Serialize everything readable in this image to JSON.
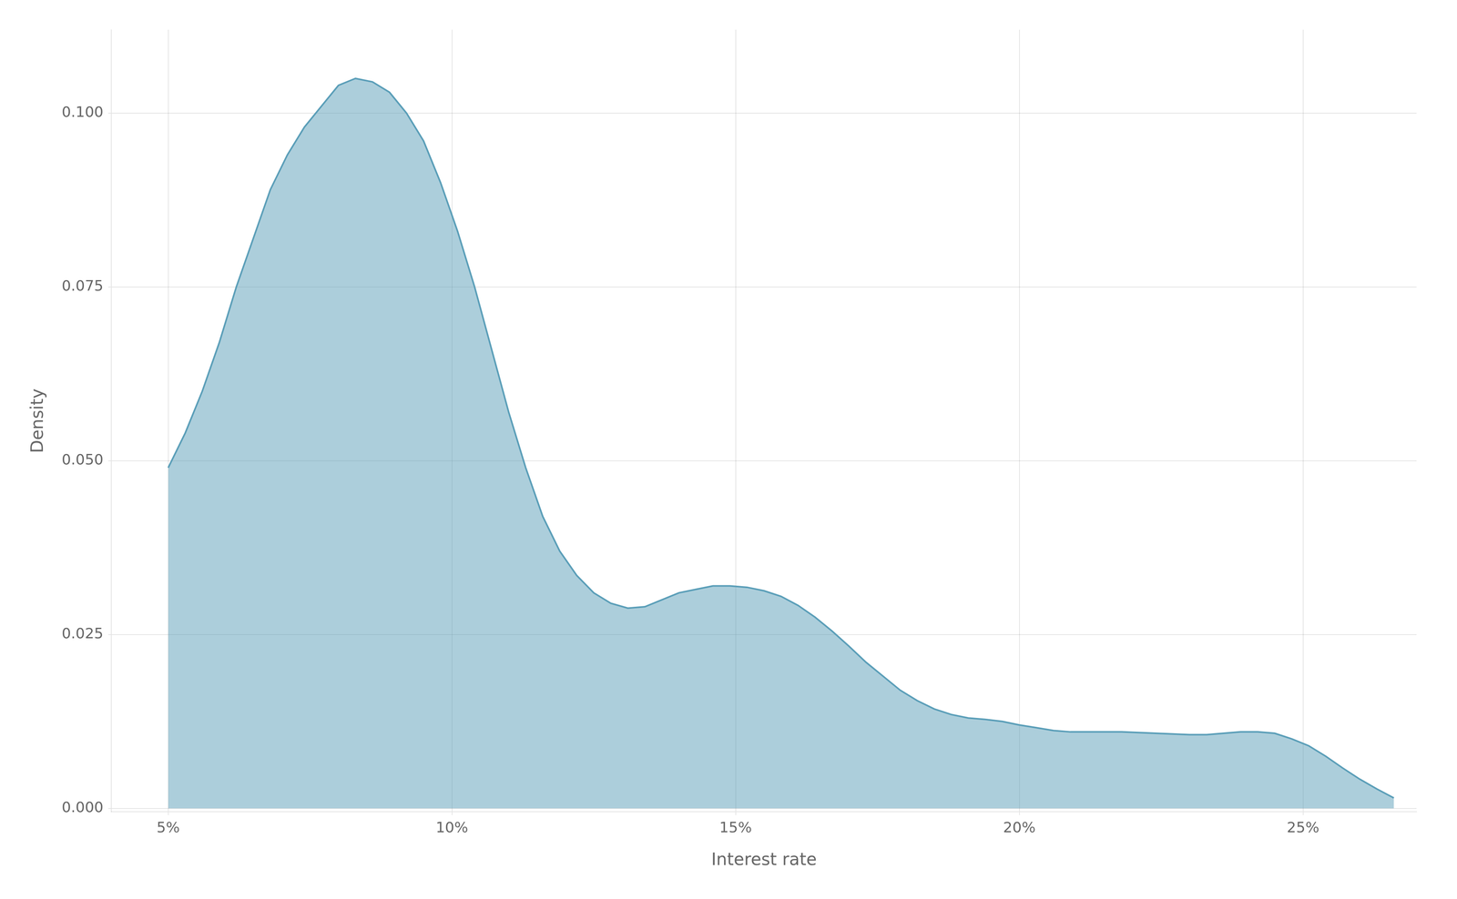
{
  "chart_data": {
    "type": "area",
    "xlabel": "Interest rate",
    "ylabel": "Density",
    "color": "#5a9eb8",
    "grid": true,
    "xlim": [
      0.04,
      0.27
    ],
    "ylim": [
      -0.0005,
      0.112
    ],
    "xticks": [
      {
        "value": 0.05,
        "label": "5%"
      },
      {
        "value": 0.1,
        "label": "10%"
      },
      {
        "value": 0.15,
        "label": "15%"
      },
      {
        "value": 0.2,
        "label": "20%"
      },
      {
        "value": 0.25,
        "label": "25%"
      }
    ],
    "yticks": [
      {
        "value": 0.0,
        "label": "0.000"
      },
      0.025,
      {
        "value": 0.05,
        "label": "0.050"
      },
      0.075,
      {
        "value": 0.1,
        "label": "0.100"
      }
    ],
    "x": [
      0.05,
      0.053,
      0.056,
      0.059,
      0.062,
      0.065,
      0.068,
      0.071,
      0.074,
      0.077,
      0.08,
      0.083,
      0.086,
      0.089,
      0.092,
      0.095,
      0.098,
      0.101,
      0.104,
      0.107,
      0.11,
      0.113,
      0.116,
      0.119,
      0.122,
      0.125,
      0.128,
      0.131,
      0.134,
      0.137,
      0.14,
      0.143,
      0.146,
      0.149,
      0.152,
      0.155,
      0.158,
      0.161,
      0.164,
      0.167,
      0.17,
      0.173,
      0.176,
      0.179,
      0.182,
      0.185,
      0.188,
      0.191,
      0.194,
      0.197,
      0.2,
      0.203,
      0.206,
      0.209,
      0.212,
      0.215,
      0.218,
      0.221,
      0.224,
      0.227,
      0.23,
      0.233,
      0.236,
      0.239,
      0.242,
      0.245,
      0.248,
      0.251,
      0.254,
      0.257,
      0.26,
      0.263,
      0.266
    ],
    "values": [
      0.049,
      0.054,
      0.06,
      0.067,
      0.075,
      0.082,
      0.089,
      0.094,
      0.098,
      0.101,
      0.104,
      0.105,
      0.1045,
      0.103,
      0.1,
      0.096,
      0.09,
      0.083,
      0.075,
      0.066,
      0.057,
      0.049,
      0.042,
      0.037,
      0.0335,
      0.031,
      0.0295,
      0.0288,
      0.029,
      0.03,
      0.031,
      0.0315,
      0.032,
      0.032,
      0.0318,
      0.0313,
      0.0305,
      0.0292,
      0.0275,
      0.0255,
      0.0233,
      0.021,
      0.019,
      0.017,
      0.0155,
      0.0143,
      0.0135,
      0.013,
      0.0128,
      0.0125,
      0.012,
      0.0116,
      0.0112,
      0.011,
      0.011,
      0.011,
      0.011,
      0.0109,
      0.0108,
      0.0107,
      0.0106,
      0.0106,
      0.0108,
      0.011,
      0.011,
      0.0108,
      0.01,
      0.009,
      0.0075,
      0.0058,
      0.0042,
      0.0028,
      0.0015
    ]
  }
}
